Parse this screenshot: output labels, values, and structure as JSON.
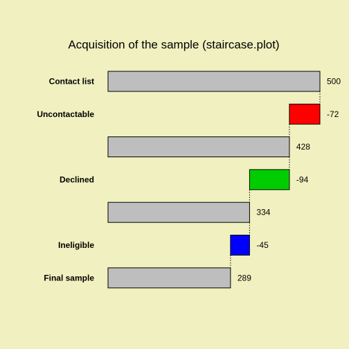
{
  "colors": {
    "background": "#f0f0c0",
    "total": "#bebebe",
    "uncontactable": "#ff0000",
    "declined": "#00cd00",
    "ineligible": "#0000ff"
  },
  "chart_data": {
    "type": "bar",
    "subtype": "waterfall",
    "title": "Acquisition of the sample (staircase.plot)",
    "xlabel": "",
    "ylabel": "",
    "xlim": [
      0,
      500
    ],
    "grid": false,
    "legend": "none",
    "rows": [
      {
        "label": "Contact list",
        "kind": "total",
        "value": 500,
        "value_label": "500",
        "color": "#bebebe"
      },
      {
        "label": "Uncontactable",
        "kind": "change",
        "value": -72,
        "value_label": "-72",
        "color": "#ff0000"
      },
      {
        "label": "",
        "kind": "total",
        "value": 428,
        "value_label": "428",
        "color": "#bebebe"
      },
      {
        "label": "Declined",
        "kind": "change",
        "value": -94,
        "value_label": "-94",
        "color": "#00cd00"
      },
      {
        "label": "",
        "kind": "total",
        "value": 334,
        "value_label": "334",
        "color": "#bebebe"
      },
      {
        "label": "Ineligible",
        "kind": "change",
        "value": -45,
        "value_label": "-45",
        "color": "#0000ff"
      },
      {
        "label": "Final sample",
        "kind": "total",
        "value": 289,
        "value_label": "289",
        "color": "#bebebe"
      }
    ]
  }
}
